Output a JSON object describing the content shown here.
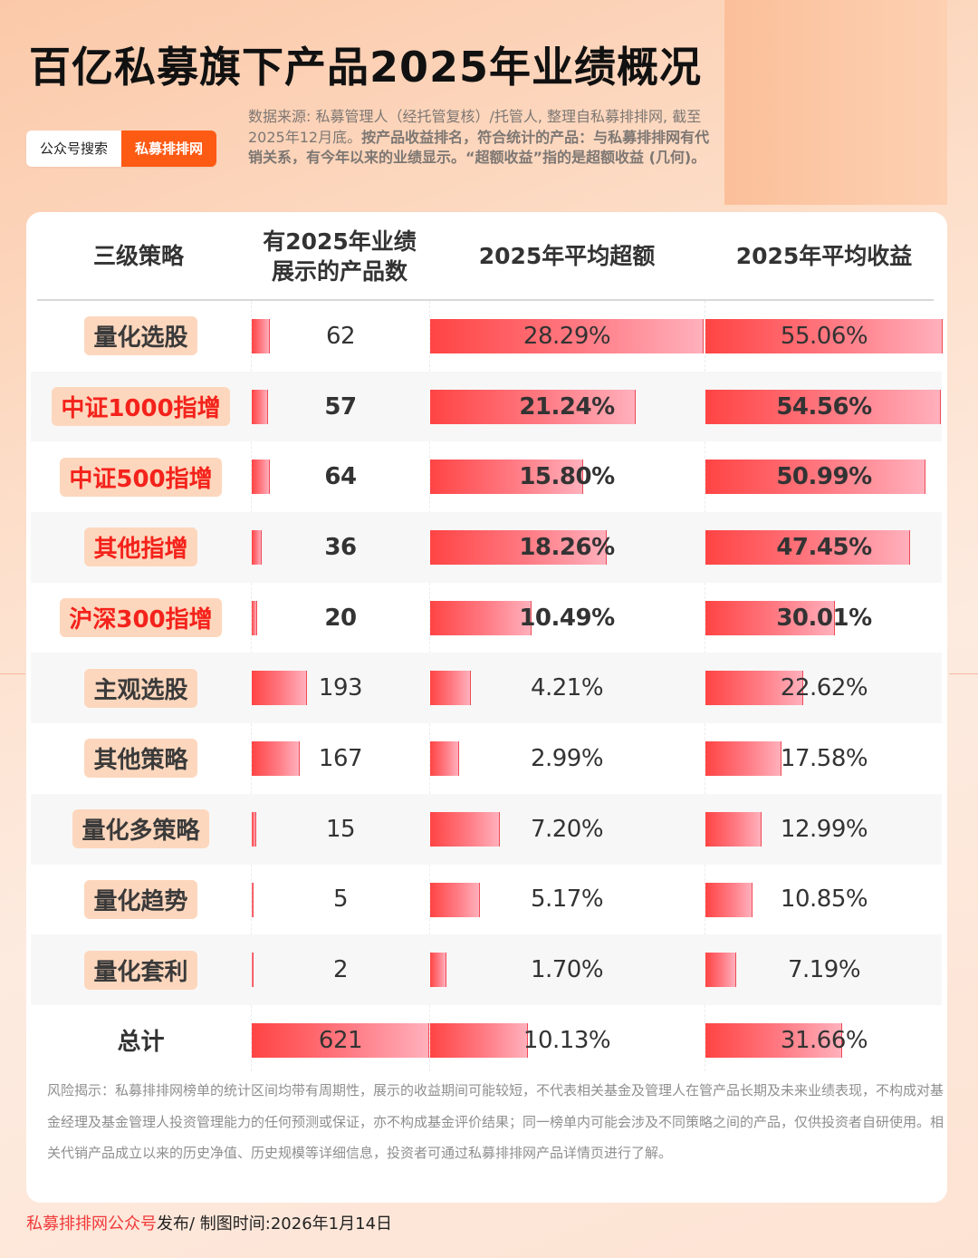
{
  "title": "百亿私募旗下产品2025年业绩概况",
  "tags": {
    "search_label": "公众号搜索",
    "brand_label": "私募排排网"
  },
  "source": {
    "plain": "数据来源: 私募管理人（经托管复核）/托管人, 整理自私募排排网, 截至2025年12月底。",
    "bold": "按产品收益排名，符合统计的产品：与私募排排网有代销关系，有今年以来的业绩显示。“超额收益”指的是超额收益 (几何)。"
  },
  "colors": {
    "accent": "#fd5a14",
    "highlight_text": "#f4221b",
    "bar_start": "#ff4444",
    "bar_end": "#ffb0bc",
    "pill_bg": "#fdd7bd"
  },
  "chart_data": {
    "type": "table",
    "title": "百亿私募旗下产品2025年业绩概况",
    "columns": [
      "三级策略",
      "有2025年业绩展示的产品数",
      "2025年平均超额",
      "2025年平均收益"
    ],
    "rows": [
      {
        "strategy": "量化选股",
        "count": 62,
        "excess": 28.29,
        "return": 55.06,
        "highlight": false,
        "bold": false
      },
      {
        "strategy": "中证1000指增",
        "count": 57,
        "excess": 21.24,
        "return": 54.56,
        "highlight": true,
        "bold": true
      },
      {
        "strategy": "中证500指增",
        "count": 64,
        "excess": 15.8,
        "return": 50.99,
        "highlight": true,
        "bold": true
      },
      {
        "strategy": "其他指增",
        "count": 36,
        "excess": 18.26,
        "return": 47.45,
        "highlight": true,
        "bold": true
      },
      {
        "strategy": "沪深300指增",
        "count": 20,
        "excess": 10.49,
        "return": 30.01,
        "highlight": true,
        "bold": true
      },
      {
        "strategy": "主观选股",
        "count": 193,
        "excess": 4.21,
        "return": 22.62,
        "highlight": false,
        "bold": false
      },
      {
        "strategy": "其他策略",
        "count": 167,
        "excess": 2.99,
        "return": 17.58,
        "highlight": false,
        "bold": false
      },
      {
        "strategy": "量化多策略",
        "count": 15,
        "excess": 7.2,
        "return": 12.99,
        "highlight": false,
        "bold": false
      },
      {
        "strategy": "量化趋势",
        "count": 5,
        "excess": 5.17,
        "return": 10.85,
        "highlight": false,
        "bold": false
      },
      {
        "strategy": "量化套利",
        "count": 2,
        "excess": 1.7,
        "return": 7.19,
        "highlight": false,
        "bold": false
      }
    ],
    "total": {
      "strategy": "总计",
      "count": 621,
      "excess": 10.13,
      "return": 31.66
    },
    "value_format": "percent_2dp"
  },
  "disclaimer": "风险揭示：私募排排网榜单的统计区间均带有周期性，展示的收益期间可能较短，不代表相关基金及管理人在管产品长期及未来业绩表现，不构成对基金经理及基金管理人投资管理能力的任何预测或保证，亦不构成基金评价结果；同一榜单内可能会涉及不同策略之间的产品，仅供投资者自研使用。相关代销产品成立以来的历史净值、历史规模等详细信息，投资者可通过私募排排网产品详情页进行了解。",
  "footer": {
    "publisher": "私募排排网公众号",
    "suffix": "发布/ 制图时间:2026年1月14日"
  }
}
